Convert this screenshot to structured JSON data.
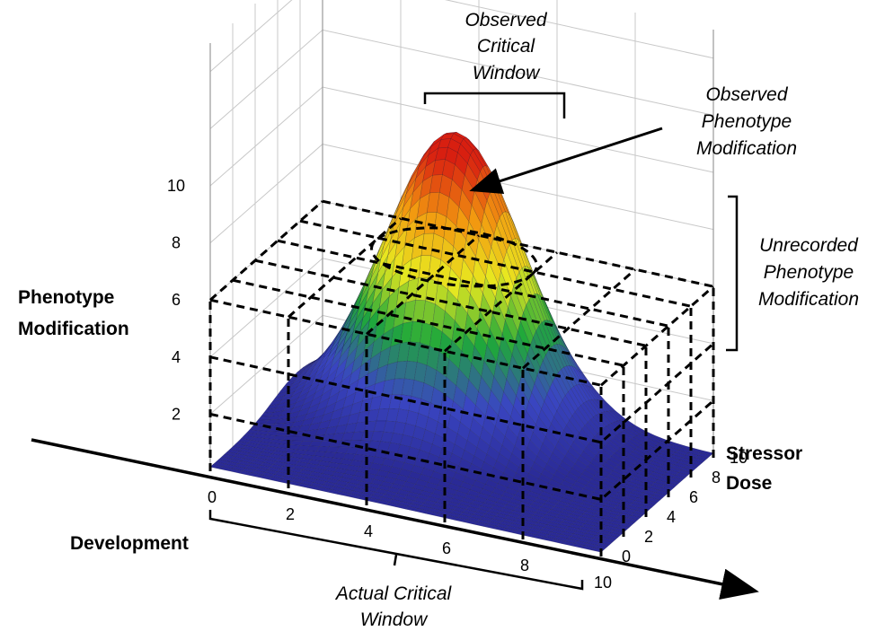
{
  "chart_data": {
    "type": "surface",
    "x_axis": {
      "label": "Development",
      "ticks": [
        "0",
        "2",
        "4",
        "6",
        "8",
        "10"
      ],
      "range": [
        0,
        10
      ]
    },
    "y_axis": {
      "label": "Stressor Dose",
      "label_lines": [
        "Stressor",
        "Dose"
      ],
      "ticks": [
        "0",
        "2",
        "4",
        "6",
        "8",
        "10"
      ],
      "range": [
        0,
        10
      ]
    },
    "z_axis": {
      "label": "Phenotype Modification",
      "label_lines": [
        "Phenotype",
        "Modification"
      ],
      "ticks": [
        "2",
        "4",
        "6",
        "8",
        "10"
      ],
      "range": [
        0,
        10
      ]
    },
    "surface": {
      "shape": "single Gaussian peak",
      "peak": {
        "x": 4,
        "y": 7.8,
        "z": 10.2
      },
      "sigma_x": 1.7,
      "sigma_y": 2.2,
      "colormap": [
        "#2a2a96",
        "#3a46c2",
        "#1fa83a",
        "#e8e820",
        "#f29a10",
        "#d81e10"
      ]
    },
    "observation_box": {
      "x_range": [
        0,
        10
      ],
      "y_range": [
        0,
        10
      ],
      "z_range": [
        0,
        6
      ],
      "grid_divisions": 5,
      "top_plane_z": 6,
      "style": "dashed"
    },
    "annotations": {
      "observed_window": [
        "Observed",
        "Critical",
        "Window"
      ],
      "observed_modification": [
        "Observed",
        "Phenotype",
        "Modification"
      ],
      "unrecorded_modification": [
        "Unrecorded",
        "Phenotype",
        "Modification"
      ],
      "actual_window": [
        "Actual Critical",
        "Window"
      ]
    },
    "colors": {
      "axis": "#000000",
      "grid": "#c8c8c8",
      "box": "#000000"
    }
  }
}
